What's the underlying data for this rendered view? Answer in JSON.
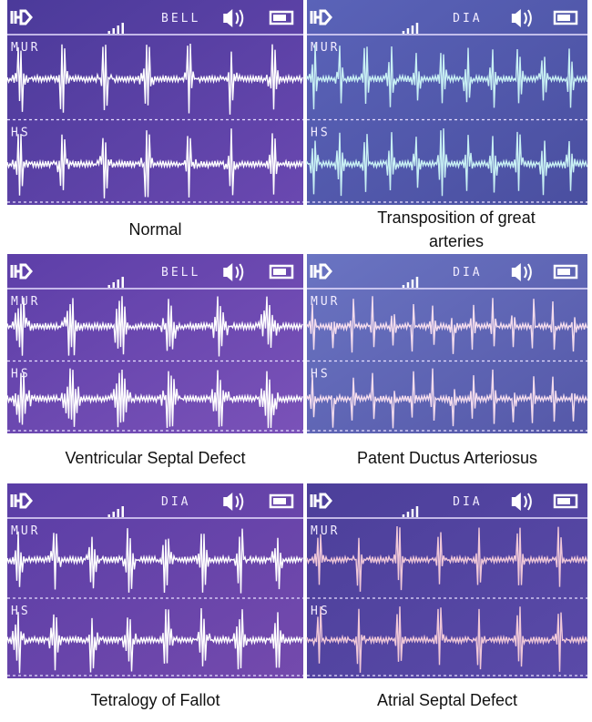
{
  "panels": [
    {
      "mode": "BELL",
      "top_label": "MUR",
      "bottom_label": "HS",
      "caption": "Normal"
    },
    {
      "mode": "DIA",
      "top_label": "MUR",
      "bottom_label": "HS",
      "caption": "Transposition of great arteries"
    },
    {
      "mode": "BELL",
      "top_label": "MUR",
      "bottom_label": "HS",
      "caption": "Ventricular Septal Defect"
    },
    {
      "mode": "DIA",
      "top_label": "MUR",
      "bottom_label": "HS",
      "caption": "Patent Ductus Arteriosus"
    },
    {
      "mode": "DIA",
      "top_label": "MUR",
      "bottom_label": "HS",
      "caption": "Tetralogy of Fallot"
    },
    {
      "mode": "DIA",
      "top_label": "MUR",
      "bottom_label": "HS",
      "caption": "Atrial Septal Defect"
    }
  ]
}
